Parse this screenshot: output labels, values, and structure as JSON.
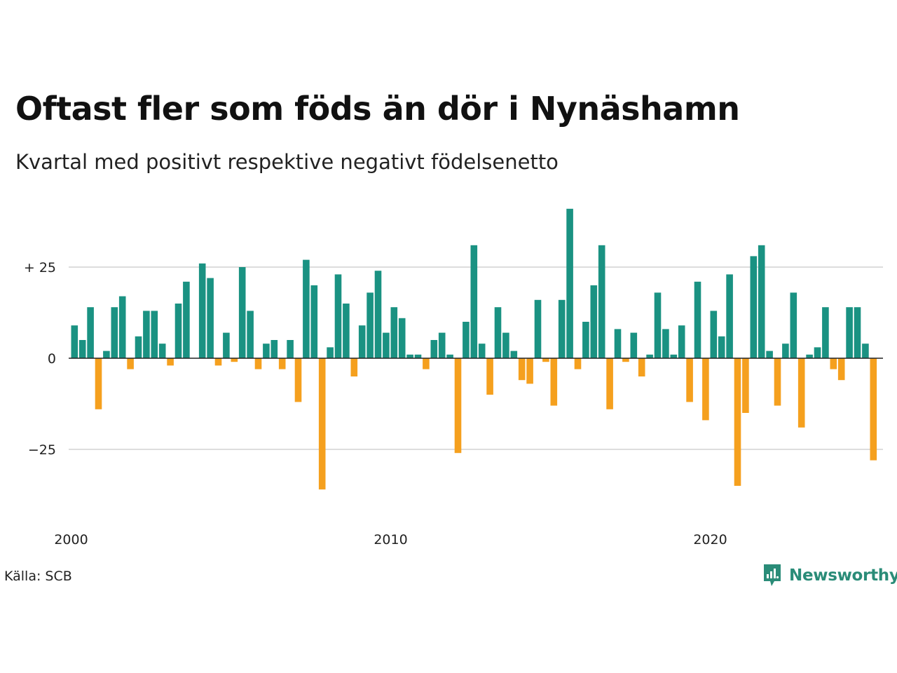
{
  "title": "Oftast fler som föds än dör i Nynäshamn",
  "subtitle": "Kvartal med positivt respektive negativt födelsenetto",
  "source": "Källa: SCB",
  "brand": "Newsworthy",
  "colors": {
    "positive": "#1a9282",
    "negative": "#f5a01e",
    "grid": "#dddddd",
    "zero_line": "#222222",
    "brand": "#2a8c78"
  },
  "chart_data": {
    "type": "bar",
    "x_start_year": 2000,
    "x_end_year": 2025,
    "quarters_per_year": 4,
    "ylim": [
      -40,
      42
    ],
    "yticks": [
      {
        "value": 25,
        "label": "+ 25"
      },
      {
        "value": 0,
        "label": "0"
      },
      {
        "value": -25,
        "label": "−25"
      }
    ],
    "xticks": [
      {
        "value": 2000,
        "label": "2000"
      },
      {
        "value": 2010,
        "label": "2010"
      },
      {
        "value": 2020,
        "label": "2020"
      }
    ],
    "grid": true,
    "values": [
      9,
      5,
      14,
      -14,
      2,
      14,
      17,
      -3,
      6,
      13,
      13,
      4,
      -2,
      15,
      21,
      0,
      26,
      22,
      -2,
      7,
      -1,
      25,
      13,
      -3,
      4,
      5,
      -3,
      5,
      -12,
      27,
      20,
      -36,
      3,
      23,
      15,
      -5,
      9,
      18,
      24,
      7,
      14,
      11,
      1,
      1,
      -3,
      5,
      7,
      1,
      -26,
      10,
      31,
      4,
      -10,
      14,
      7,
      2,
      -6,
      -7,
      16,
      -1,
      -13,
      16,
      41,
      -3,
      10,
      20,
      31,
      -14,
      8,
      -1,
      7,
      -5,
      1,
      18,
      8,
      1,
      9,
      -12,
      21,
      -17,
      13,
      6,
      23,
      -35,
      -15,
      28,
      31,
      2,
      -13,
      4,
      18,
      -19,
      1,
      3,
      14,
      -3,
      -6,
      14,
      14,
      4,
      -28
    ]
  }
}
